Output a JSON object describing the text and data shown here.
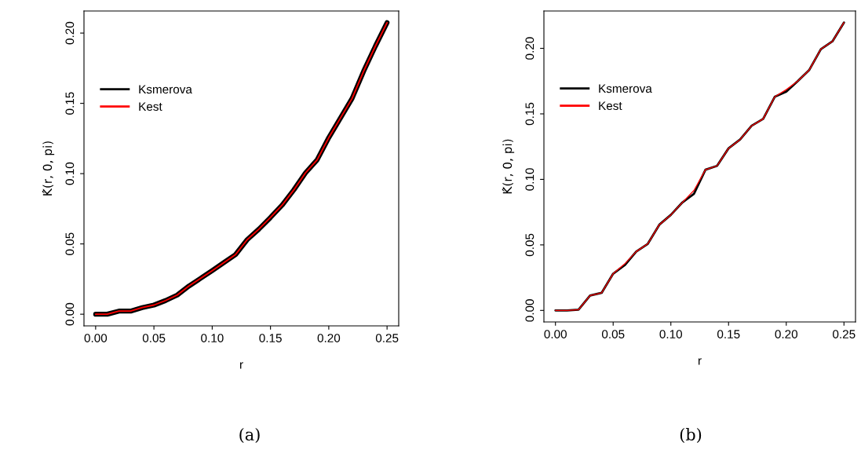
{
  "chart_data": [
    {
      "type": "line",
      "xlabel": "r",
      "ylabel": "K̂(r, 0, pi)",
      "annotations": [
        "(a)"
      ],
      "x": [
        0,
        0.01,
        0.02,
        0.03,
        0.04,
        0.05,
        0.06,
        0.07,
        0.08,
        0.09,
        0.1,
        0.11,
        0.12,
        0.13,
        0.14,
        0.15,
        0.16,
        0.17,
        0.18,
        0.19,
        0.2,
        0.21,
        0.22,
        0.23,
        0.24,
        0.25
      ],
      "series": [
        {
          "name": "Ksmerova",
          "color": "#000000",
          "values": [
            0,
            0,
            0.0022,
            0.0022,
            0.0047,
            0.0065,
            0.0097,
            0.0136,
            0.02,
            0.0255,
            0.031,
            0.0367,
            0.0424,
            0.053,
            0.0605,
            0.0688,
            0.0776,
            0.0884,
            0.1005,
            0.1098,
            0.1256,
            0.1395,
            0.1535,
            0.173,
            0.1907,
            0.2074
          ]
        },
        {
          "name": "Kest",
          "color": "#ff0000",
          "values": [
            0,
            0,
            0.0022,
            0.0022,
            0.0047,
            0.0065,
            0.0097,
            0.0136,
            0.02,
            0.0255,
            0.031,
            0.0367,
            0.0424,
            0.053,
            0.0605,
            0.0688,
            0.0776,
            0.0884,
            0.1005,
            0.1098,
            0.1256,
            0.1395,
            0.1535,
            0.173,
            0.1907,
            0.2074
          ]
        }
      ],
      "xlim": [
        -0.01,
        0.26
      ],
      "ylim": [
        -0.0083,
        0.2157
      ],
      "xticks": [
        {
          "value": 0,
          "label": "0.00"
        },
        {
          "value": 0.05,
          "label": "0.05"
        },
        {
          "value": 0.1,
          "label": "0.10"
        },
        {
          "value": 0.15,
          "label": "0.15"
        },
        {
          "value": 0.2,
          "label": "0.20"
        },
        {
          "value": 0.25,
          "label": "0.25"
        }
      ],
      "yticks": [
        {
          "value": 0,
          "label": "0.00"
        },
        {
          "value": 0.05,
          "label": "0.05"
        },
        {
          "value": 0.1,
          "label": "0.10"
        },
        {
          "value": 0.15,
          "label": "0.15"
        },
        {
          "value": 0.2,
          "label": "0.20"
        }
      ],
      "grid": false,
      "legend": "top left",
      "marker": "none",
      "line_style": "solid"
    },
    {
      "type": "line",
      "xlabel": "r",
      "ylabel": "K̂(r, 0, pi)",
      "annotations": [
        "(b)"
      ],
      "x": [
        0,
        0.01,
        0.02,
        0.03,
        0.04,
        0.05,
        0.06,
        0.07,
        0.08,
        0.09,
        0.1,
        0.11,
        0.12,
        0.13,
        0.14,
        0.15,
        0.16,
        0.17,
        0.18,
        0.19,
        0.2,
        0.21,
        0.22,
        0.23,
        0.24,
        0.25
      ],
      "series": [
        {
          "name": "Ksmerova",
          "color": "#000000",
          "values": [
            0,
            0,
            0.0006,
            0.0114,
            0.0134,
            0.028,
            0.0345,
            0.0449,
            0.0508,
            0.0654,
            0.0729,
            0.0824,
            0.089,
            0.1074,
            0.1103,
            0.1237,
            0.1304,
            0.1409,
            0.1462,
            0.163,
            0.167,
            0.175,
            0.1836,
            0.1994,
            0.2053,
            0.2197
          ]
        },
        {
          "name": "Kest",
          "color": "#ff0000",
          "values": [
            0,
            0,
            0.0006,
            0.0114,
            0.0134,
            0.028,
            0.0355,
            0.0449,
            0.0508,
            0.0654,
            0.0729,
            0.0824,
            0.0916,
            0.1074,
            0.1103,
            0.1237,
            0.1304,
            0.1409,
            0.1462,
            0.163,
            0.1685,
            0.175,
            0.1836,
            0.1994,
            0.2053,
            0.2197
          ]
        }
      ],
      "xlim": [
        -0.01,
        0.26
      ],
      "ylim": [
        -0.0088,
        0.2285
      ],
      "xticks": [
        {
          "value": 0,
          "label": "0.00"
        },
        0.05,
        {
          "value": 0.1,
          "label": "0.10"
        },
        0.15,
        {
          "value": 0.2,
          "label": "0.20"
        },
        0.25
      ],
      "yticks": [
        {
          "value": 0,
          "label": "0.00"
        },
        0.05,
        {
          "value": 0.1,
          "label": "0.10"
        },
        0.15,
        {
          "value": 0.2,
          "label": "0.20"
        }
      ],
      "grid": false,
      "legend": "top left",
      "marker": "none",
      "line_style": "solid"
    }
  ]
}
